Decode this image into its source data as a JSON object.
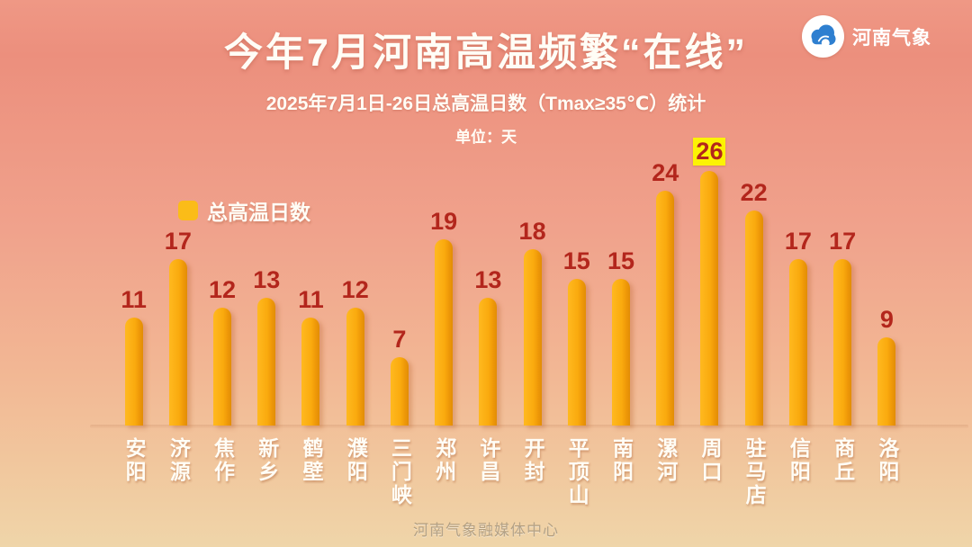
{
  "header": {
    "title": "今年7月河南高温频繁“在线”",
    "subtitle": "2025年7月1日-26日总高温日数（Tmax≥35℃）统计",
    "unit": "单位：天"
  },
  "logo": {
    "name": "河南气象",
    "icon": "cloud-icon",
    "icon_color": "#2E7FD0",
    "circle_color": "#FFFFFF"
  },
  "legend": {
    "label": "总高温日数",
    "swatch_color": "#FBBC18"
  },
  "footer": {
    "watermark": "河南气象融媒体中心"
  },
  "colors": {
    "background_top": "#EC8F7D",
    "background_bottom": "#EFD5A9",
    "bar": "#FAAA0E",
    "value_label": "#B3261C",
    "highlight_background": "#FCF303",
    "text": "#FFFDF6"
  },
  "chart_data": {
    "type": "bar",
    "title": "今年7月河南高温频繁“在线”",
    "subtitle": "2025年7月1日-26日总高温日数（Tmax≥35℃）统计",
    "ylabel": "天",
    "ylim": [
      0,
      26
    ],
    "grid": false,
    "legend_position": "upper-left",
    "legend_entries": [
      "总高温日数"
    ],
    "categories": [
      "安阳",
      "济源",
      "焦作",
      "新乡",
      "鹤壁",
      "濮阳",
      "三门峡",
      "郑州",
      "许昌",
      "开封",
      "平顶山",
      "南阳",
      "漯河",
      "周口",
      "驻马店",
      "信阳",
      "商丘",
      "洛阳"
    ],
    "values": [
      11,
      17,
      12,
      13,
      11,
      12,
      7,
      19,
      13,
      18,
      15,
      15,
      24,
      26,
      22,
      17,
      17,
      9
    ],
    "highlight_category": "周口",
    "highlight_value": 26
  }
}
